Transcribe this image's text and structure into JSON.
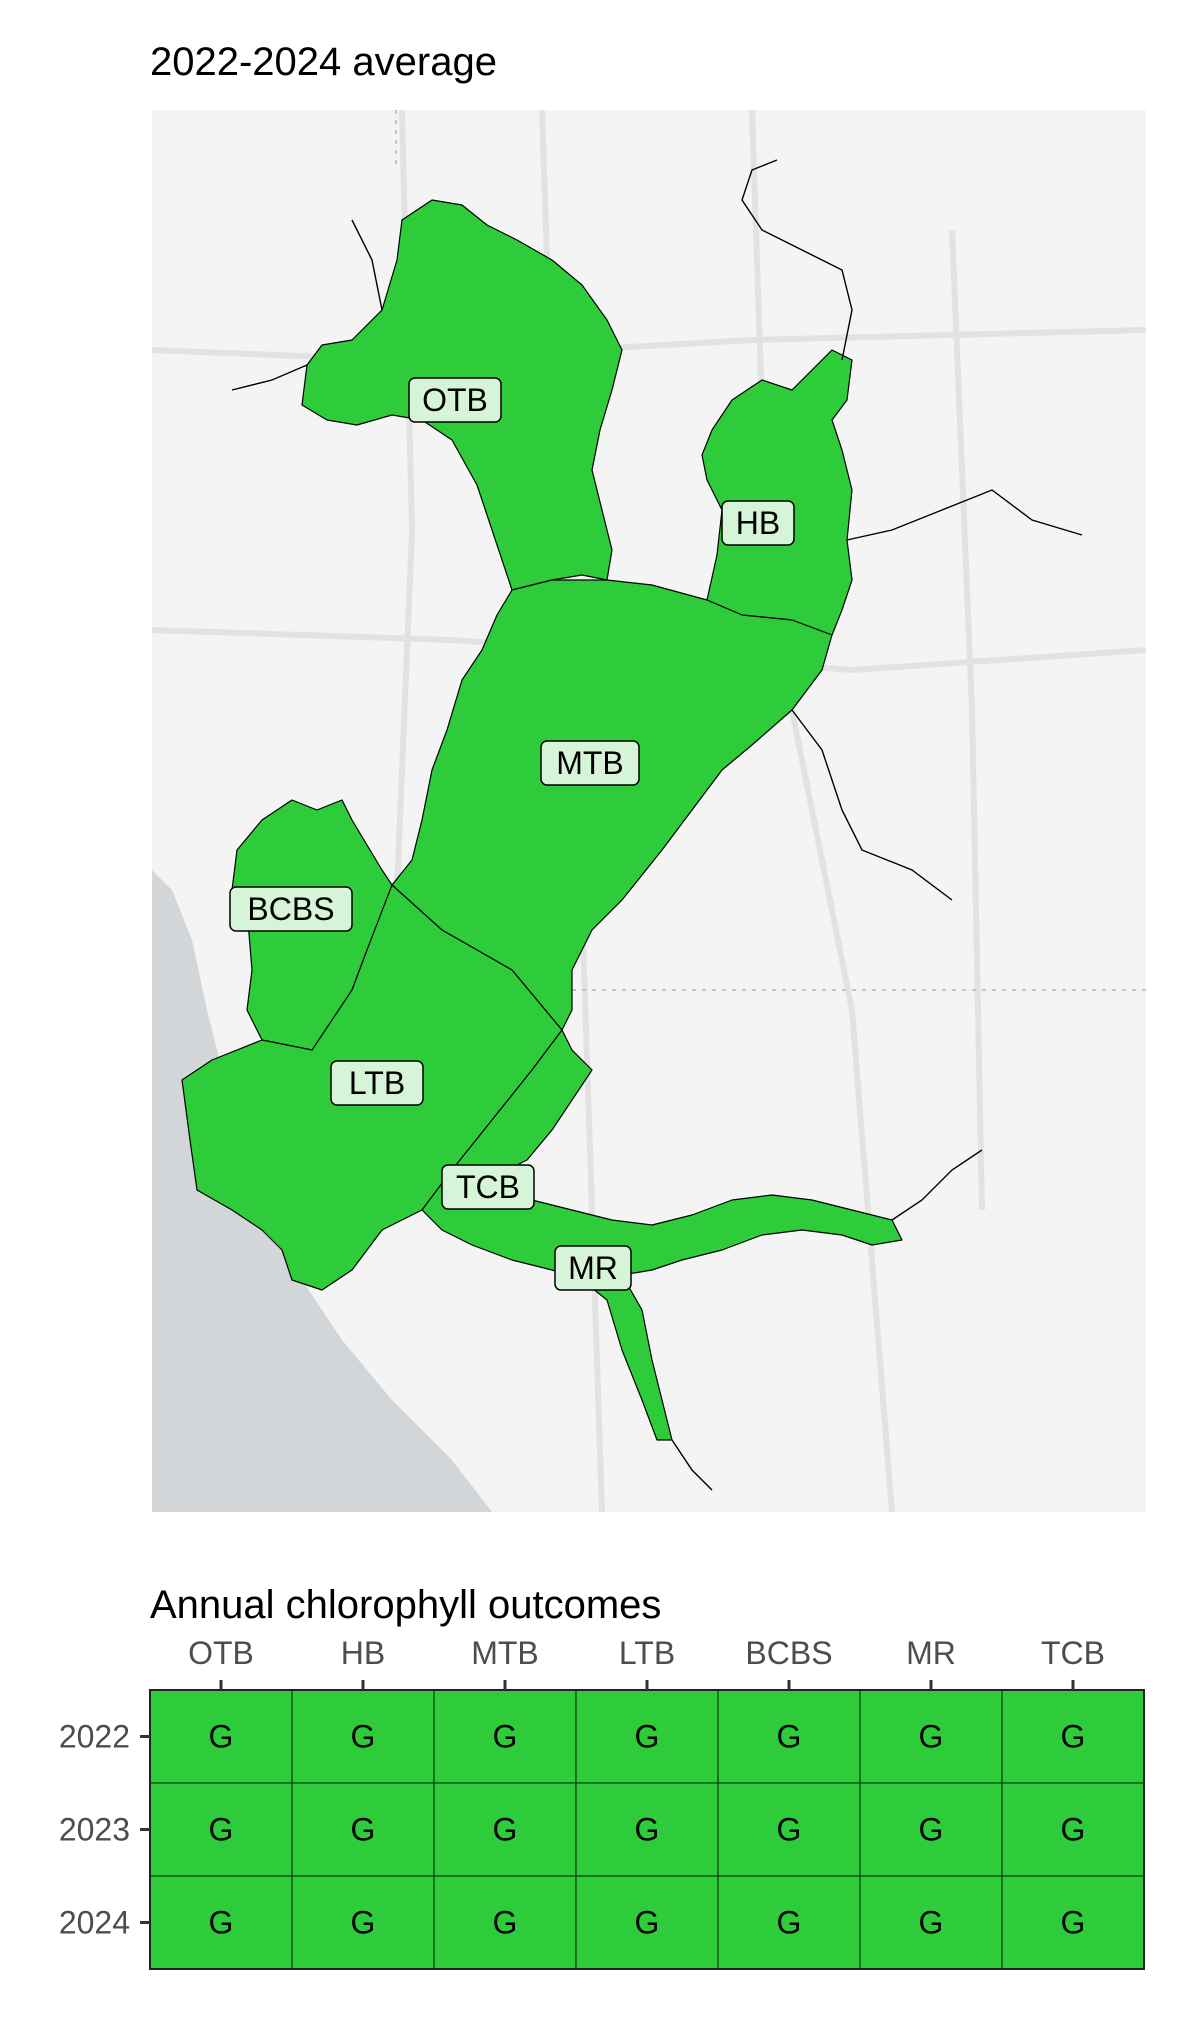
{
  "map": {
    "title": "2022-2024 average",
    "fill_color": "#2ECC3A",
    "label_fill": "#D6F5D8",
    "background": "#F4F4F4",
    "water_color": "#D3D6D9",
    "segments": [
      {
        "id": "OTB",
        "label": "OTB"
      },
      {
        "id": "HB",
        "label": "HB"
      },
      {
        "id": "MTB",
        "label": "MTB"
      },
      {
        "id": "BCBS",
        "label": "BCBS"
      },
      {
        "id": "LTB",
        "label": "LTB"
      },
      {
        "id": "TCB",
        "label": "TCB"
      },
      {
        "id": "MR",
        "label": "MR"
      }
    ]
  },
  "chart_data": {
    "type": "heatmap",
    "title": "Annual chlorophyll outcomes",
    "columns": [
      "OTB",
      "HB",
      "MTB",
      "LTB",
      "BCBS",
      "MR",
      "TCB"
    ],
    "rows": [
      "2022",
      "2023",
      "2024"
    ],
    "values": [
      [
        "G",
        "G",
        "G",
        "G",
        "G",
        "G",
        "G"
      ],
      [
        "G",
        "G",
        "G",
        "G",
        "G",
        "G",
        "G"
      ],
      [
        "G",
        "G",
        "G",
        "G",
        "G",
        "G",
        "G"
      ]
    ],
    "colors": {
      "G": "#2ECC3A"
    }
  }
}
